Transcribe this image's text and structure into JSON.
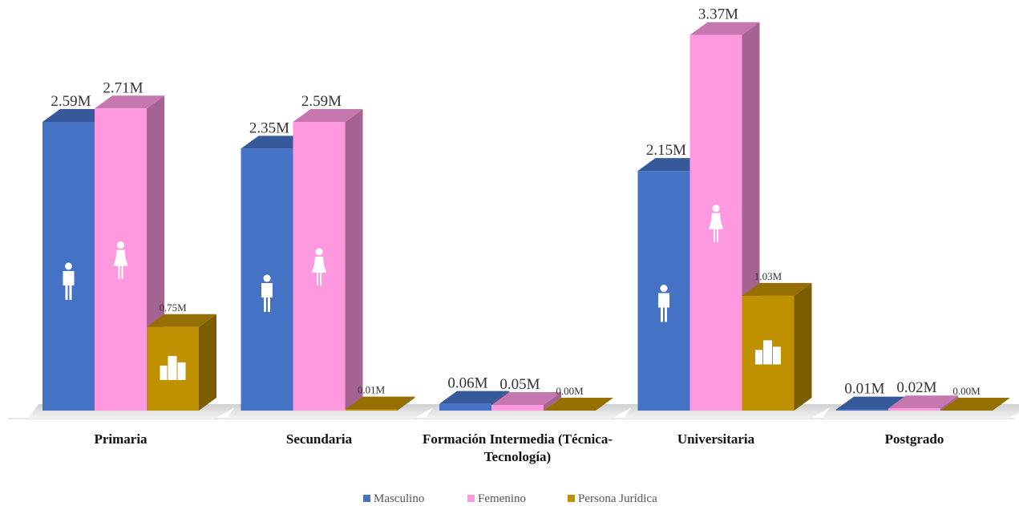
{
  "chart_data": {
    "type": "bar3d",
    "categories": [
      "Primaria",
      "Secundaria",
      "Formación Intermedia (Técnica-Tecnología)",
      "Universitaria",
      "Postgrado"
    ],
    "series": [
      {
        "name": "Masculino",
        "color": "#4472c4",
        "values": [
          2.59,
          2.35,
          0.06,
          2.15,
          0.01
        ],
        "value_labels": [
          "2.59M",
          "2.35M",
          "0.06M",
          "2.15M",
          "0.01M"
        ]
      },
      {
        "name": "Femenino",
        "color": "#fe99e0",
        "values": [
          2.71,
          2.59,
          0.05,
          3.37,
          0.02
        ],
        "value_labels": [
          "2.71M",
          "2.59M",
          "0.05M",
          "3.37M",
          "0.02M"
        ]
      },
      {
        "name": "Persona Jurídica",
        "color": "#bf9000",
        "values": [
          0.75,
          0.01,
          0.0,
          1.03,
          0.0
        ],
        "value_labels": [
          "0.75M",
          "0.01M",
          "0.00M",
          "1.03M",
          "0.00M"
        ]
      }
    ],
    "legend": "bottom"
  }
}
